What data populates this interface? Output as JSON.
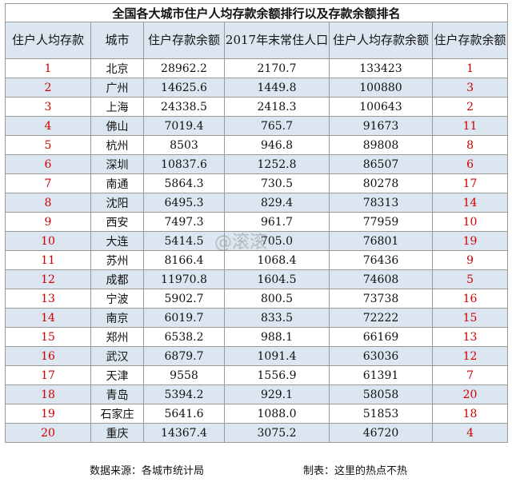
{
  "title": "全国各大城市住户人均存款余额排行以及存款余额排名",
  "headers": [
    "住户人均存款",
    "城市",
    "住户存款余额",
    "2017年末常住人口",
    "住户人均存款余额",
    "住户存款余额"
  ],
  "rows": [
    {
      "rank": "1",
      "city": "北京",
      "deposit": "28962.2",
      "population": "2170.7",
      "per_capita": "133423",
      "deposit_rank": "1"
    },
    {
      "rank": "2",
      "city": "广州",
      "deposit": "14625.6",
      "population": "1449.8",
      "per_capita": "100880",
      "deposit_rank": "3"
    },
    {
      "rank": "3",
      "city": "上海",
      "deposit": "24338.5",
      "population": "2418.3",
      "per_capita": "100643",
      "deposit_rank": "2"
    },
    {
      "rank": "4",
      "city": "佛山",
      "deposit": "7019.4",
      "population": "765.7",
      "per_capita": "91673",
      "deposit_rank": "11"
    },
    {
      "rank": "5",
      "city": "杭州",
      "deposit": "8503",
      "population": "946.8",
      "per_capita": "89808",
      "deposit_rank": "8"
    },
    {
      "rank": "6",
      "city": "深圳",
      "deposit": "10837.6",
      "population": "1252.8",
      "per_capita": "86507",
      "deposit_rank": "6"
    },
    {
      "rank": "7",
      "city": "南通",
      "deposit": "5864.3",
      "population": "730.5",
      "per_capita": "80278",
      "deposit_rank": "17"
    },
    {
      "rank": "8",
      "city": "沈阳",
      "deposit": "6495.3",
      "population": "829.4",
      "per_capita": "78313",
      "deposit_rank": "14"
    },
    {
      "rank": "9",
      "city": "西安",
      "deposit": "7497.3",
      "population": "961.7",
      "per_capita": "77959",
      "deposit_rank": "10"
    },
    {
      "rank": "10",
      "city": "大连",
      "deposit": "5414.5",
      "population": "705.0",
      "per_capita": "76801",
      "deposit_rank": "19"
    },
    {
      "rank": "11",
      "city": "苏州",
      "deposit": "8166.4",
      "population": "1068.4",
      "per_capita": "76436",
      "deposit_rank": "9"
    },
    {
      "rank": "12",
      "city": "成都",
      "deposit": "11970.8",
      "population": "1604.5",
      "per_capita": "74608",
      "deposit_rank": "5"
    },
    {
      "rank": "13",
      "city": "宁波",
      "deposit": "5902.7",
      "population": "800.5",
      "per_capita": "73738",
      "deposit_rank": "16"
    },
    {
      "rank": "14",
      "city": "南京",
      "deposit": "6019.7",
      "population": "833.5",
      "per_capita": "72222",
      "deposit_rank": "15"
    },
    {
      "rank": "15",
      "city": "郑州",
      "deposit": "6538.2",
      "population": "988.1",
      "per_capita": "66169",
      "deposit_rank": "13"
    },
    {
      "rank": "16",
      "city": "武汉",
      "deposit": "6879.7",
      "population": "1091.4",
      "per_capita": "63036",
      "deposit_rank": "12"
    },
    {
      "rank": "17",
      "city": "天津",
      "deposit": "9558",
      "population": "1556.9",
      "per_capita": "61391",
      "deposit_rank": "7"
    },
    {
      "rank": "18",
      "city": "青岛",
      "deposit": "5394.2",
      "population": "929.1",
      "per_capita": "58058",
      "deposit_rank": "20"
    },
    {
      "rank": "19",
      "city": "石家庄",
      "deposit": "5641.6",
      "population": "1088.0",
      "per_capita": "51853",
      "deposit_rank": "18"
    },
    {
      "rank": "20",
      "city": "重庆",
      "deposit": "14367.4",
      "population": "3075.2",
      "per_capita": "46720",
      "deposit_rank": "4"
    }
  ],
  "footer": {
    "source": "数据来源：各城市统计局",
    "maker": "制表：这里的热点不热"
  },
  "watermark": "@滚滚",
  "colors": {
    "header_bg": "#dce6f1",
    "alt_row_bg": "#dce6f1",
    "rank_text": "#d00000",
    "border": "#9a9a9a"
  }
}
